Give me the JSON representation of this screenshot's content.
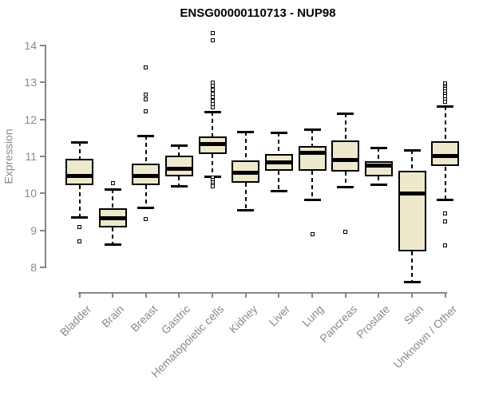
{
  "chart_data": {
    "type": "boxplot",
    "title": "ENSG00000110713 - NUP98",
    "ylabel": "Expression",
    "xlabel": "",
    "ylim": [
      8,
      14
    ],
    "yticks": [
      8,
      9,
      10,
      11,
      12,
      13,
      14
    ],
    "grid": false,
    "legend": "none",
    "categories": [
      "Bladder",
      "Brain",
      "Breast",
      "Gastric",
      "Hematopoietic cells",
      "Kidney",
      "Liver",
      "Lung",
      "Pancreas",
      "Prostate",
      "Skin",
      "Unknown / Other"
    ],
    "series": [
      {
        "name": "Bladder",
        "low": 9.37,
        "q1": 10.22,
        "median": 10.48,
        "q3": 10.94,
        "high": 11.38,
        "outliers": [
          9.1,
          8.7
        ]
      },
      {
        "name": "Brain",
        "low": 8.62,
        "q1": 9.07,
        "median": 9.32,
        "q3": 9.6,
        "high": 10.12,
        "outliers": [
          10.28
        ]
      },
      {
        "name": "Breast",
        "low": 9.62,
        "q1": 10.23,
        "median": 10.48,
        "q3": 10.81,
        "high": 11.57,
        "outliers": [
          13.4,
          12.68,
          12.55,
          12.21,
          9.3
        ]
      },
      {
        "name": "Gastric",
        "low": 10.2,
        "q1": 10.45,
        "median": 10.66,
        "q3": 11.02,
        "high": 11.31,
        "outliers": []
      },
      {
        "name": "Hematopoietic cells",
        "low": 10.46,
        "q1": 11.07,
        "median": 11.33,
        "q3": 11.55,
        "high": 12.21,
        "outliers": [
          14.33,
          14.15,
          13.0,
          12.9,
          12.8,
          12.7,
          12.6,
          12.5,
          12.42,
          12.33,
          10.42,
          10.36,
          10.3,
          10.24,
          10.19
        ]
      },
      {
        "name": "Kidney",
        "low": 9.55,
        "q1": 10.28,
        "median": 10.55,
        "q3": 10.9,
        "high": 11.67,
        "outliers": []
      },
      {
        "name": "Liver",
        "low": 10.07,
        "q1": 10.61,
        "median": 10.84,
        "q3": 11.07,
        "high": 11.65,
        "outliers": []
      },
      {
        "name": "Lung",
        "low": 9.83,
        "q1": 10.61,
        "median": 11.1,
        "q3": 11.28,
        "high": 11.74,
        "outliers": [
          8.9
        ]
      },
      {
        "name": "Pancreas",
        "low": 10.18,
        "q1": 10.59,
        "median": 10.9,
        "q3": 11.43,
        "high": 12.17,
        "outliers": [
          8.97
        ]
      },
      {
        "name": "Prostate",
        "low": 10.25,
        "q1": 10.46,
        "median": 10.75,
        "q3": 10.87,
        "high": 11.24,
        "outliers": []
      },
      {
        "name": "Skin",
        "low": 7.62,
        "q1": 8.43,
        "median": 9.99,
        "q3": 10.61,
        "high": 11.17,
        "outliers": []
      },
      {
        "name": "Unknown / Other",
        "low": 9.83,
        "q1": 10.73,
        "median": 11.02,
        "q3": 11.4,
        "high": 12.37,
        "outliers": [
          12.97,
          12.92,
          12.87,
          12.82,
          12.76,
          12.7,
          12.63,
          12.55,
          12.48,
          9.45,
          9.25,
          8.6
        ]
      }
    ],
    "colors": {
      "box_fill": "#EEE8CD",
      "box_border": "#000000",
      "median": "#000000",
      "whisker": "#000000",
      "axis": "#878787",
      "tick_label": "#8a8a8a",
      "title": "#000000",
      "background": "#ffffff"
    }
  }
}
